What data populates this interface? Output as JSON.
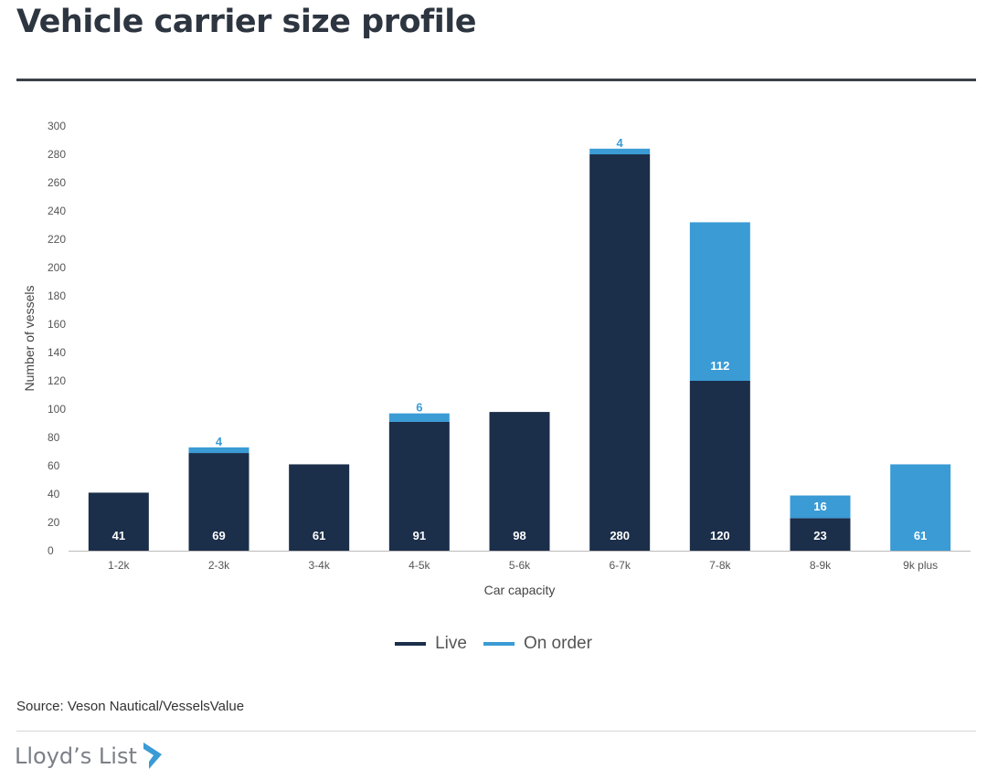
{
  "page": {
    "title": "Vehicle carrier size profile",
    "source": "Source: Veson Nautical/VesselsValue",
    "brand": "Lloyd’s List"
  },
  "colors": {
    "live": "#1b2e4a",
    "on_order": "#3a9bd5"
  },
  "chart_data": {
    "type": "bar",
    "stacked": true,
    "title": "",
    "xlabel": "Car capacity",
    "ylabel": "Number of vessels",
    "ylim": [
      0,
      300
    ],
    "yticks": [
      0,
      20,
      40,
      60,
      80,
      100,
      120,
      140,
      160,
      180,
      200,
      220,
      240,
      260,
      280,
      300
    ],
    "categories": [
      "1-2k",
      "2-3k",
      "3-4k",
      "4-5k",
      "5-6k",
      "6-7k",
      "7-8k",
      "8-9k",
      "9k plus"
    ],
    "series": [
      {
        "name": "Live",
        "values": [
          41,
          69,
          61,
          91,
          98,
          280,
          120,
          23,
          0
        ]
      },
      {
        "name": "On order",
        "values": [
          0,
          4,
          0,
          6,
          0,
          4,
          112,
          16,
          61
        ]
      }
    ],
    "legend_position": "bottom-center",
    "grid": false
  }
}
